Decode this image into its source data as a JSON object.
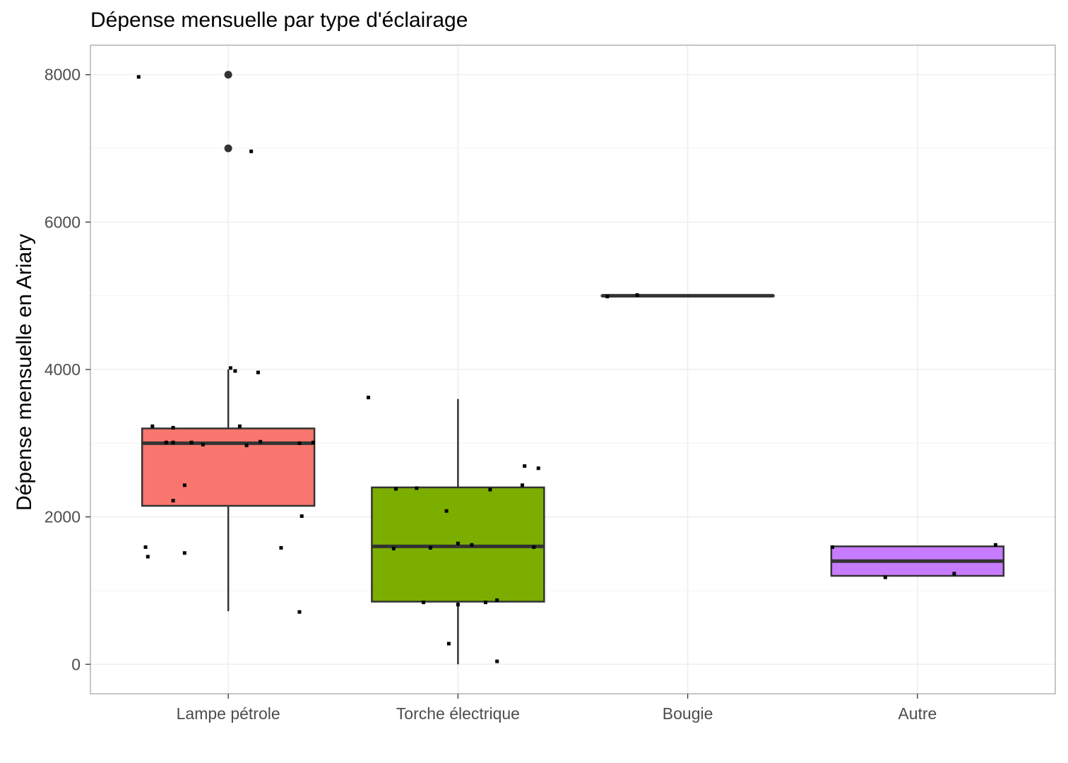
{
  "chart_data": {
    "type": "boxplot",
    "title": "Dépense mensuelle par type d'éclairage",
    "xlabel": "",
    "ylabel": "Dépense mensuelle en Ariary",
    "ylim": [
      -400,
      8400
    ],
    "y_ticks": [
      0,
      2000,
      4000,
      6000,
      8000
    ],
    "grid": true,
    "legend": "none",
    "categories": [
      "Lampe pétrole",
      "Torche électrique",
      "Bougie",
      "Autre"
    ],
    "series": [
      {
        "category": "Lampe pétrole",
        "fill": "#F8766D",
        "q1": 2150,
        "median": 3000,
        "q3": 3200,
        "whisker_low": 720,
        "whisker_high": 4000,
        "outliers": [
          8000,
          7000
        ],
        "points": [
          [
            -0.39,
            7970
          ],
          [
            0.1,
            6960
          ],
          [
            0.01,
            4020
          ],
          [
            0.03,
            3980
          ],
          [
            0.13,
            3960
          ],
          [
            -0.33,
            3230
          ],
          [
            -0.24,
            3210
          ],
          [
            0.05,
            3230
          ],
          [
            -0.27,
            3010
          ],
          [
            -0.24,
            3010
          ],
          [
            -0.16,
            3010
          ],
          [
            -0.11,
            2980
          ],
          [
            0.08,
            2970
          ],
          [
            0.14,
            3020
          ],
          [
            0.31,
            3000
          ],
          [
            0.37,
            3010
          ],
          [
            -0.19,
            2430
          ],
          [
            -0.24,
            2220
          ],
          [
            0.32,
            2010
          ],
          [
            -0.36,
            1590
          ],
          [
            -0.35,
            1460
          ],
          [
            -0.19,
            1510
          ],
          [
            0.23,
            1580
          ],
          [
            0.31,
            710
          ]
        ]
      },
      {
        "category": "Torche électrique",
        "fill": "#7CAE00",
        "q1": 850,
        "median": 1600,
        "q3": 2400,
        "whisker_low": 0,
        "whisker_high": 3600,
        "outliers": [],
        "points": [
          [
            -0.39,
            3620
          ],
          [
            0.29,
            2690
          ],
          [
            0.35,
            2660
          ],
          [
            -0.27,
            2380
          ],
          [
            -0.18,
            2390
          ],
          [
            0.14,
            2370
          ],
          [
            0.28,
            2430
          ],
          [
            -0.05,
            2080
          ],
          [
            -0.28,
            1570
          ],
          [
            -0.12,
            1580
          ],
          [
            0.0,
            1640
          ],
          [
            0.06,
            1620
          ],
          [
            0.33,
            1590
          ],
          [
            -0.15,
            840
          ],
          [
            0.0,
            810
          ],
          [
            0.12,
            840
          ],
          [
            0.17,
            870
          ],
          [
            -0.04,
            280
          ],
          [
            0.17,
            40
          ]
        ]
      },
      {
        "category": "Bougie",
        "fill": "#00BFC4",
        "q1": 5000,
        "median": 5000,
        "q3": 5000,
        "whisker_low": 5000,
        "whisker_high": 5000,
        "outliers": [],
        "points": [
          [
            -0.35,
            4990
          ],
          [
            -0.22,
            5010
          ]
        ]
      },
      {
        "category": "Autre",
        "fill": "#C77CFF",
        "q1": 1200,
        "median": 1400,
        "q3": 1600,
        "whisker_low": 1200,
        "whisker_high": 1600,
        "outliers": [],
        "points": [
          [
            -0.37,
            1590
          ],
          [
            0.34,
            1620
          ],
          [
            -0.14,
            1180
          ],
          [
            0.16,
            1230
          ]
        ]
      }
    ]
  }
}
